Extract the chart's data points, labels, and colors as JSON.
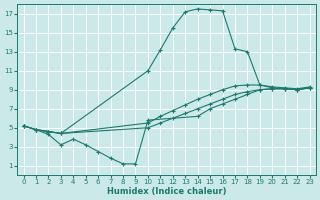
{
  "xlabel": "Humidex (Indice chaleur)",
  "ylabel": "",
  "background_color": "#cce9e9",
  "grid_color": "#b0d4d4",
  "line_color": "#1a7a6e",
  "xlim": [
    -0.5,
    23.5
  ],
  "ylim": [
    0,
    18
  ],
  "xticks": [
    0,
    1,
    2,
    3,
    4,
    5,
    6,
    7,
    8,
    9,
    10,
    11,
    12,
    13,
    14,
    15,
    16,
    17,
    18,
    19,
    20,
    21,
    22,
    23
  ],
  "yticks": [
    1,
    3,
    5,
    7,
    9,
    11,
    13,
    15,
    17
  ],
  "curve1_x": [
    0,
    1,
    2,
    3,
    10,
    11,
    12,
    13,
    14,
    15,
    16,
    17,
    18,
    19,
    20,
    21,
    22,
    23
  ],
  "curve1_y": [
    5.2,
    4.8,
    4.6,
    4.4,
    11.0,
    13.2,
    15.5,
    17.2,
    17.5,
    17.4,
    17.3,
    13.3,
    13.0,
    9.5,
    9.2,
    9.1,
    9.0,
    9.2
  ],
  "curve2_x": [
    0,
    1,
    2,
    3,
    10,
    11,
    12,
    13,
    14,
    15,
    16,
    17,
    18,
    19,
    20,
    21,
    22,
    23
  ],
  "curve2_y": [
    5.2,
    4.8,
    4.6,
    4.4,
    5.5,
    6.2,
    6.8,
    7.4,
    8.0,
    8.5,
    9.0,
    9.4,
    9.5,
    9.5,
    9.3,
    9.2,
    9.1,
    9.3
  ],
  "curve3_x": [
    0,
    1,
    2,
    3,
    10,
    11,
    12,
    13,
    14,
    15,
    16,
    17,
    18,
    19,
    20,
    21,
    22,
    23
  ],
  "curve3_y": [
    5.2,
    4.8,
    4.6,
    4.4,
    5.0,
    5.5,
    6.0,
    6.5,
    7.0,
    7.5,
    8.0,
    8.5,
    8.8,
    9.0,
    9.1,
    9.1,
    9.0,
    9.2
  ],
  "curve4_x": [
    0,
    1,
    2,
    3,
    4,
    5,
    6,
    7,
    8,
    9,
    10,
    14,
    15,
    16,
    17,
    18,
    19,
    20,
    21,
    22,
    23
  ],
  "curve4_y": [
    5.2,
    4.8,
    4.3,
    3.2,
    3.8,
    3.2,
    2.5,
    1.8,
    1.2,
    1.2,
    5.8,
    6.2,
    7.0,
    7.5,
    8.0,
    8.5,
    9.0,
    9.1,
    9.1,
    9.0,
    9.2
  ]
}
